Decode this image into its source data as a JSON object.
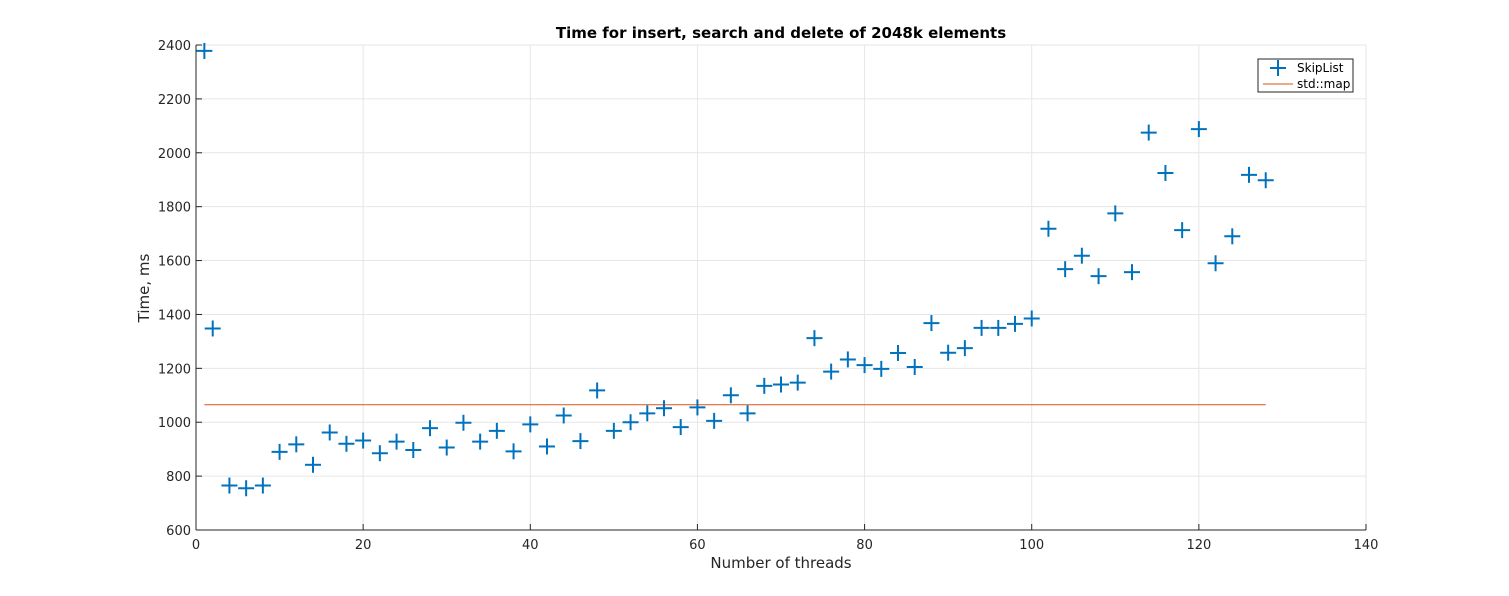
{
  "chart_data": {
    "type": "scatter",
    "title": "Time for insert, search and delete of 2048k elements",
    "xlabel": "Number of threads",
    "ylabel": "Time, ms",
    "xlim": [
      0,
      140
    ],
    "ylim": [
      600,
      2400
    ],
    "xticks": [
      0,
      20,
      40,
      60,
      80,
      100,
      120,
      140
    ],
    "yticks": [
      600,
      800,
      1000,
      1200,
      1400,
      1600,
      1800,
      2000,
      2200,
      2400
    ],
    "grid": true,
    "legend_position": "top-right",
    "series": [
      {
        "name": "SkipList",
        "marker": "+",
        "color": "#0072BD",
        "x": [
          1,
          2,
          4,
          6,
          8,
          10,
          12,
          14,
          16,
          18,
          20,
          22,
          24,
          26,
          28,
          30,
          32,
          34,
          36,
          38,
          40,
          42,
          44,
          46,
          48,
          50,
          52,
          54,
          56,
          58,
          60,
          62,
          64,
          66,
          68,
          70,
          72,
          74,
          76,
          78,
          80,
          82,
          84,
          86,
          88,
          90,
          92,
          94,
          96,
          98,
          100,
          102,
          104,
          106,
          108,
          110,
          112,
          114,
          116,
          118,
          120,
          122,
          124,
          126,
          128
        ],
        "y": [
          2378,
          1348,
          765,
          755,
          765,
          890,
          918,
          842,
          962,
          920,
          932,
          885,
          928,
          897,
          978,
          906,
          998,
          928,
          968,
          892,
          992,
          910,
          1025,
          930,
          1118,
          968,
          1000,
          1033,
          1052,
          982,
          1055,
          1005,
          1100,
          1033,
          1135,
          1140,
          1147,
          1312,
          1188,
          1233,
          1212,
          1198,
          1257,
          1205,
          1368,
          1258,
          1275,
          1350,
          1350,
          1365,
          1385,
          1718,
          1568,
          1618,
          1542,
          1775,
          1557,
          2075,
          1925,
          1713,
          2088,
          1590,
          1690,
          1918,
          1898
        ]
      },
      {
        "name": "std::map",
        "line": true,
        "color": "#D95319",
        "x": [
          1,
          128
        ],
        "y": [
          1065,
          1065
        ]
      }
    ]
  }
}
